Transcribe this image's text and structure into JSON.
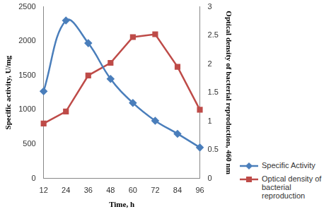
{
  "chart_data": {
    "type": "line",
    "x_label": "Time, h",
    "y_label": "Specific activity, U/mg",
    "y2_label": "Optical density of bacterial reproduction, 460 nm",
    "categories": [
      12,
      24,
      36,
      48,
      60,
      72,
      84,
      96
    ],
    "series": [
      {
        "name": "Specific Activity",
        "color": "#4a7ebb",
        "marker": "diamond",
        "line_style": "smooth",
        "values": [
          1270,
          2300,
          1970,
          1450,
          1100,
          840,
          650,
          450
        ]
      },
      {
        "name": "Optical density of bacterial reproduction",
        "color": "#be4b48",
        "marker": "square",
        "line_style": "solid",
        "axis": "y2",
        "values": [
          0.96,
          1.17,
          1.8,
          2.02,
          2.47,
          2.52,
          1.95,
          1.2
        ]
      }
    ],
    "ylim": [
      0,
      2500
    ],
    "yticks": [
      0,
      500,
      1000,
      1500,
      2000,
      2500
    ],
    "y2lim": [
      0,
      3
    ],
    "y2ticks": [
      0,
      0.5,
      1,
      1.5,
      2,
      2.5,
      3
    ],
    "grid": false,
    "legend": "right"
  }
}
